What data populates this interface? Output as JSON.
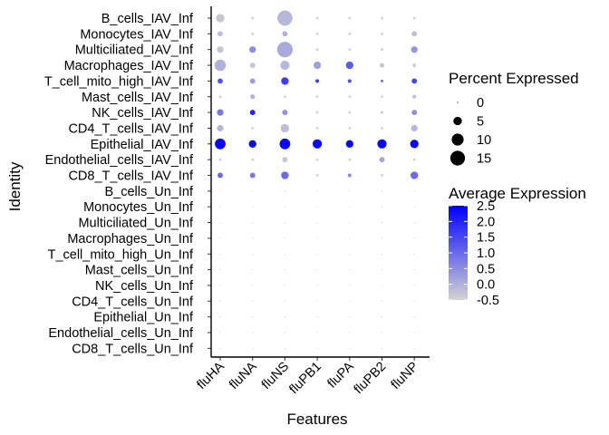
{
  "chart_data": {
    "type": "dotplot",
    "xlabel": "Features",
    "ylabel": "Identity",
    "features": [
      "fluHA",
      "fluNA",
      "fluNS",
      "fluPB1",
      "fluPA",
      "fluPB2",
      "fluNP"
    ],
    "identities": [
      "B_cells_IAV_Inf",
      "Monocytes_IAV_Inf",
      "Multiciliated_IAV_Inf",
      "Macrophages_IAV_Inf",
      "T_cell_mito_high_IAV_Inf",
      "Mast_cells_IAV_Inf",
      "NK_cells_IAV_Inf",
      "CD4_T_cells_IAV_Inf",
      "Epithelial_IAV_Inf",
      "Endothelial_cells_IAV_Inf",
      "CD8_T_cells_IAV_Inf",
      "B_cells_Un_Inf",
      "Monocytes_Un_Inf",
      "Multiciliated_Un_Inf",
      "Macrophages_Un_Inf",
      "T_cell_mito_high_Un_Inf",
      "Mast_cells_Un_Inf",
      "NK_cells_Un_Inf",
      "CD4_T_cells_Un_Inf",
      "Epithelial_Un_Inf",
      "Endothelial_cells_Un_Inf",
      "CD8_T_cells_Un_Inf"
    ],
    "percent_expressed": [
      [
        5,
        0.5,
        16,
        0.5,
        0.5,
        0.5,
        0.5
      ],
      [
        2,
        0.5,
        2,
        0.5,
        0.5,
        0.5,
        2
      ],
      [
        3,
        3,
        17,
        0.5,
        0.5,
        0.5,
        3
      ],
      [
        9,
        2,
        6,
        4,
        4,
        1.5,
        1
      ],
      [
        2,
        2,
        4,
        1,
        1,
        0.5,
        2
      ],
      [
        0.5,
        1.5,
        0.5,
        0.5,
        0.5,
        0.5,
        1
      ],
      [
        3,
        2,
        2,
        0.5,
        0.5,
        0.5,
        2
      ],
      [
        3,
        0.5,
        5,
        0.5,
        0.5,
        0.5,
        3
      ],
      [
        8,
        4,
        8,
        6,
        4,
        6,
        5
      ],
      [
        0.5,
        0.5,
        2,
        0.5,
        0.5,
        2,
        0.5
      ],
      [
        2,
        2,
        4,
        0.5,
        1,
        0.5,
        4
      ],
      [
        0,
        0,
        0,
        0,
        0,
        0,
        0
      ],
      [
        0,
        0,
        0,
        0,
        0,
        0,
        0
      ],
      [
        0,
        0,
        0,
        0,
        0,
        0,
        0
      ],
      [
        0,
        0,
        0,
        0,
        0,
        0,
        0
      ],
      [
        0,
        0,
        0,
        0,
        0,
        0,
        0
      ],
      [
        0,
        0,
        0,
        0,
        0,
        0,
        0
      ],
      [
        0,
        0,
        0,
        0,
        0,
        0,
        0
      ],
      [
        0,
        0,
        0,
        0,
        0,
        0,
        0
      ],
      [
        0,
        0,
        0,
        0,
        0,
        0,
        0
      ],
      [
        0,
        0,
        0,
        0,
        0,
        0,
        0
      ],
      [
        0,
        0,
        0,
        0,
        0,
        0,
        0
      ]
    ],
    "average_expression": [
      [
        -0.3,
        -0.5,
        -0.1,
        -0.5,
        -0.5,
        -0.5,
        -0.5
      ],
      [
        -0.2,
        -0.5,
        0.0,
        -0.5,
        -0.5,
        -0.5,
        -0.2
      ],
      [
        -0.3,
        0.5,
        0.1,
        -0.5,
        -0.5,
        -0.5,
        0.4
      ],
      [
        0.0,
        -0.3,
        -0.1,
        0.2,
        1.2,
        -0.3,
        -0.4
      ],
      [
        1.3,
        0.3,
        1.6,
        1.6,
        1.4,
        1.0,
        1.5
      ],
      [
        -0.5,
        0.0,
        -0.5,
        -0.5,
        -0.5,
        -0.5,
        -0.2
      ],
      [
        0.8,
        2.0,
        0.5,
        -0.5,
        -0.5,
        -0.3,
        0.5
      ],
      [
        -0.1,
        -0.5,
        -0.2,
        -0.5,
        -0.5,
        -0.5,
        -0.1
      ],
      [
        2.4,
        2.4,
        2.4,
        2.4,
        2.4,
        2.4,
        2.4
      ],
      [
        -0.5,
        -0.5,
        -0.3,
        -0.5,
        -0.5,
        0.2,
        -0.5
      ],
      [
        1.0,
        0.8,
        1.0,
        -0.5,
        0.5,
        -0.5,
        1.0
      ],
      [
        -0.5,
        -0.5,
        -0.5,
        -0.5,
        -0.5,
        -0.5,
        -0.5
      ],
      [
        -0.5,
        -0.5,
        -0.5,
        -0.5,
        -0.5,
        -0.5,
        -0.5
      ],
      [
        -0.5,
        -0.5,
        -0.5,
        -0.5,
        -0.5,
        -0.5,
        -0.5
      ],
      [
        -0.5,
        -0.5,
        -0.5,
        -0.5,
        -0.5,
        -0.5,
        -0.5
      ],
      [
        -0.5,
        -0.5,
        -0.5,
        -0.5,
        -0.5,
        -0.5,
        -0.5
      ],
      [
        -0.5,
        -0.5,
        -0.5,
        -0.5,
        -0.5,
        -0.5,
        -0.5
      ],
      [
        -0.5,
        -0.5,
        -0.5,
        -0.5,
        -0.5,
        -0.5,
        -0.5
      ],
      [
        -0.5,
        -0.5,
        -0.5,
        -0.5,
        -0.5,
        -0.5,
        -0.5
      ],
      [
        -0.5,
        -0.5,
        -0.5,
        -0.5,
        -0.5,
        -0.5,
        -0.5
      ],
      [
        -0.5,
        -0.5,
        -0.5,
        -0.5,
        -0.5,
        -0.5,
        -0.5
      ],
      [
        -0.5,
        -0.5,
        -0.5,
        -0.5,
        -0.5,
        -0.5,
        -0.5
      ]
    ],
    "size_legend": {
      "title": "Percent Expressed",
      "values": [
        0,
        5,
        10,
        15
      ],
      "labels": [
        "0",
        "5",
        "10",
        "15"
      ]
    },
    "color_legend": {
      "title": "Average Expression",
      "range": [
        -0.5,
        2.5
      ],
      "ticks": [
        2.5,
        2.0,
        1.5,
        1.0,
        0.5,
        0.0,
        -0.5
      ],
      "labels": [
        "2.5",
        "2.0",
        "1.5",
        "1.0",
        "0.5",
        "0.0",
        "-0.5"
      ],
      "low_color": "#d3d3d3",
      "high_color": "#0000ff"
    },
    "grid": false
  }
}
